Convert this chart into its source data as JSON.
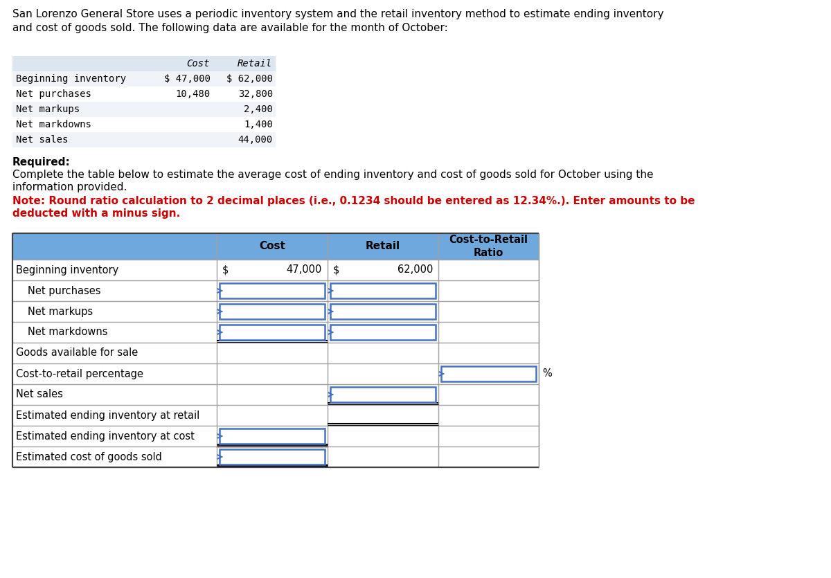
{
  "title_text": "San Lorenzo General Store uses a periodic inventory system and the retail inventory method to estimate ending inventory\nand cost of goods sold. The following data are available for the month of October:",
  "intro_rows": [
    [
      "Beginning inventory",
      "$ 47,000",
      "$ 62,000"
    ],
    [
      "Net purchases",
      "10,480",
      "32,800"
    ],
    [
      "Net markups",
      "",
      "2,400"
    ],
    [
      "Net markdowns",
      "",
      "1,400"
    ],
    [
      "Net sales",
      "",
      "44,000"
    ]
  ],
  "required_label": "Required:",
  "required_text": "Complete the table below to estimate the average cost of ending inventory and cost of goods sold for October using the\ninformation provided.",
  "note_text": "Note: Round ratio calculation to 2 decimal places (i.e., 0.1234 should be entered as 12.34%.). Enter amounts to be\ndeducted with a minus sign.",
  "main_table_rows": [
    {
      "label": "Beginning inventory",
      "indent": false,
      "cost_input": false,
      "retail_input": false,
      "ratio_input": false,
      "cost_val": "47,000",
      "retail_val": "62,000"
    },
    {
      "label": "Net purchases",
      "indent": true,
      "cost_input": true,
      "retail_input": true,
      "ratio_input": false,
      "cost_val": "",
      "retail_val": ""
    },
    {
      "label": "Net markups",
      "indent": true,
      "cost_input": true,
      "retail_input": true,
      "ratio_input": false,
      "cost_val": "",
      "retail_val": ""
    },
    {
      "label": "Net markdowns",
      "indent": true,
      "cost_input": true,
      "retail_input": true,
      "ratio_input": false,
      "cost_val": "",
      "retail_val": ""
    },
    {
      "label": "Goods available for sale",
      "indent": false,
      "cost_input": false,
      "retail_input": false,
      "ratio_input": false,
      "cost_val": "",
      "retail_val": ""
    },
    {
      "label": "Cost-to-retail percentage",
      "indent": false,
      "cost_input": false,
      "retail_input": false,
      "ratio_input": true,
      "cost_val": "",
      "retail_val": ""
    },
    {
      "label": "Net sales",
      "indent": false,
      "cost_input": false,
      "retail_input": true,
      "ratio_input": false,
      "cost_val": "",
      "retail_val": ""
    },
    {
      "label": "Estimated ending inventory at retail",
      "indent": false,
      "cost_input": false,
      "retail_input": false,
      "ratio_input": false,
      "cost_val": "",
      "retail_val": ""
    },
    {
      "label": "Estimated ending inventory at cost",
      "indent": false,
      "cost_input": true,
      "retail_input": false,
      "ratio_input": false,
      "cost_val": "",
      "retail_val": ""
    },
    {
      "label": "Estimated cost of goods sold",
      "indent": false,
      "cost_input": true,
      "retail_input": false,
      "ratio_input": false,
      "cost_val": "",
      "retail_val": ""
    }
  ],
  "header_bg": "#6fa8dc",
  "input_border": "#4472c4",
  "intro_bg": "#dce6f1",
  "note_color": "#cc0000",
  "bg_color": "#ffffff",
  "border_light": "#a0a0a0",
  "border_dark": "#404040"
}
